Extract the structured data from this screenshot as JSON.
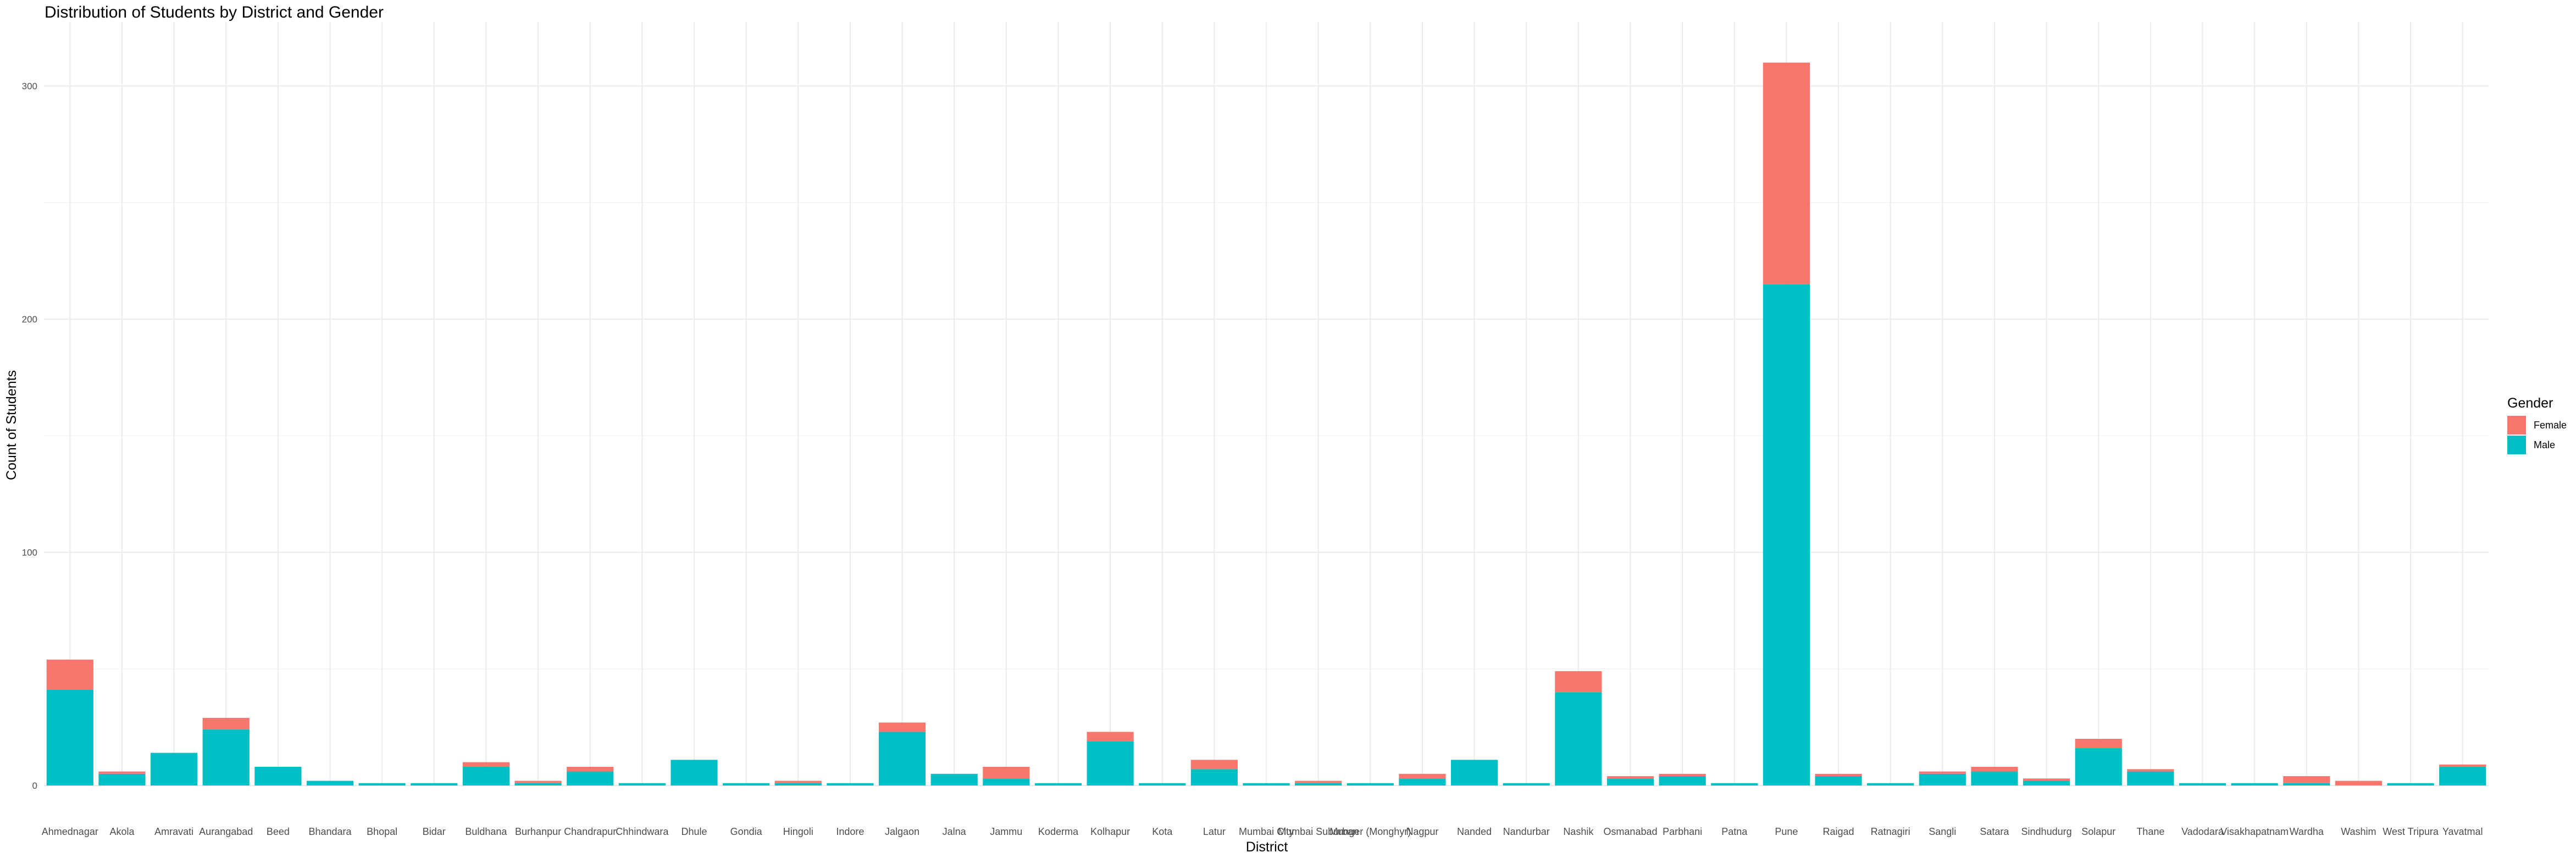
{
  "chart_data": {
    "type": "bar",
    "stacked": true,
    "title": "Distribution of Students by District and Gender",
    "xlabel": "District",
    "ylabel": "Count of Students",
    "ylim": [
      0,
      330
    ],
    "yticks": [
      0,
      100,
      200,
      300
    ],
    "grid": true,
    "legend": {
      "title": "Gender",
      "position": "right"
    },
    "categories": [
      "Ahmednagar",
      "Akola",
      "Amravati",
      "Aurangabad",
      "Beed",
      "Bhandara",
      "Bhopal",
      "Bidar",
      "Buldhana",
      "Burhanpur",
      "Chandrapur",
      "Chhindwara",
      "Dhule",
      "Gondia",
      "Hingoli",
      "Indore",
      "Jalgaon",
      "Jalna",
      "Jammu",
      "Koderma",
      "Kolhapur",
      "Kota",
      "Latur",
      "Mumbai City",
      "Mumbai Suburban",
      "Munger (Monghyr)",
      "Nagpur",
      "Nanded",
      "Nandurbar",
      "Nashik",
      "Osmanabad",
      "Parbhani",
      "Patna",
      "Pune",
      "Raigad",
      "Ratnagiri",
      "Sangli",
      "Satara",
      "Sindhudurg",
      "Solapur",
      "Thane",
      "Vadodara",
      "Visakhapatnam",
      "Wardha",
      "Washim",
      "West Tripura",
      "Yavatmal"
    ],
    "series": [
      {
        "name": "Female",
        "color": "#F8766D",
        "values": [
          13,
          1,
          0,
          5,
          0,
          0,
          0,
          0,
          2,
          1,
          2,
          0,
          0,
          0,
          1,
          0,
          4,
          0,
          5,
          0,
          4,
          0,
          4,
          0,
          1,
          0,
          2,
          0,
          0,
          9,
          1,
          1,
          0,
          95,
          1,
          0,
          1,
          2,
          1,
          4,
          1,
          0,
          0,
          3,
          2,
          0,
          1
        ]
      },
      {
        "name": "Male",
        "color": "#00BFC4",
        "values": [
          41,
          5,
          14,
          24,
          8,
          2,
          1,
          1,
          8,
          1,
          6,
          1,
          11,
          1,
          1,
          1,
          23,
          5,
          3,
          1,
          19,
          1,
          7,
          1,
          1,
          1,
          3,
          11,
          1,
          40,
          3,
          4,
          1,
          215,
          4,
          1,
          5,
          6,
          2,
          16,
          6,
          1,
          1,
          1,
          0,
          1,
          8
        ]
      }
    ]
  }
}
